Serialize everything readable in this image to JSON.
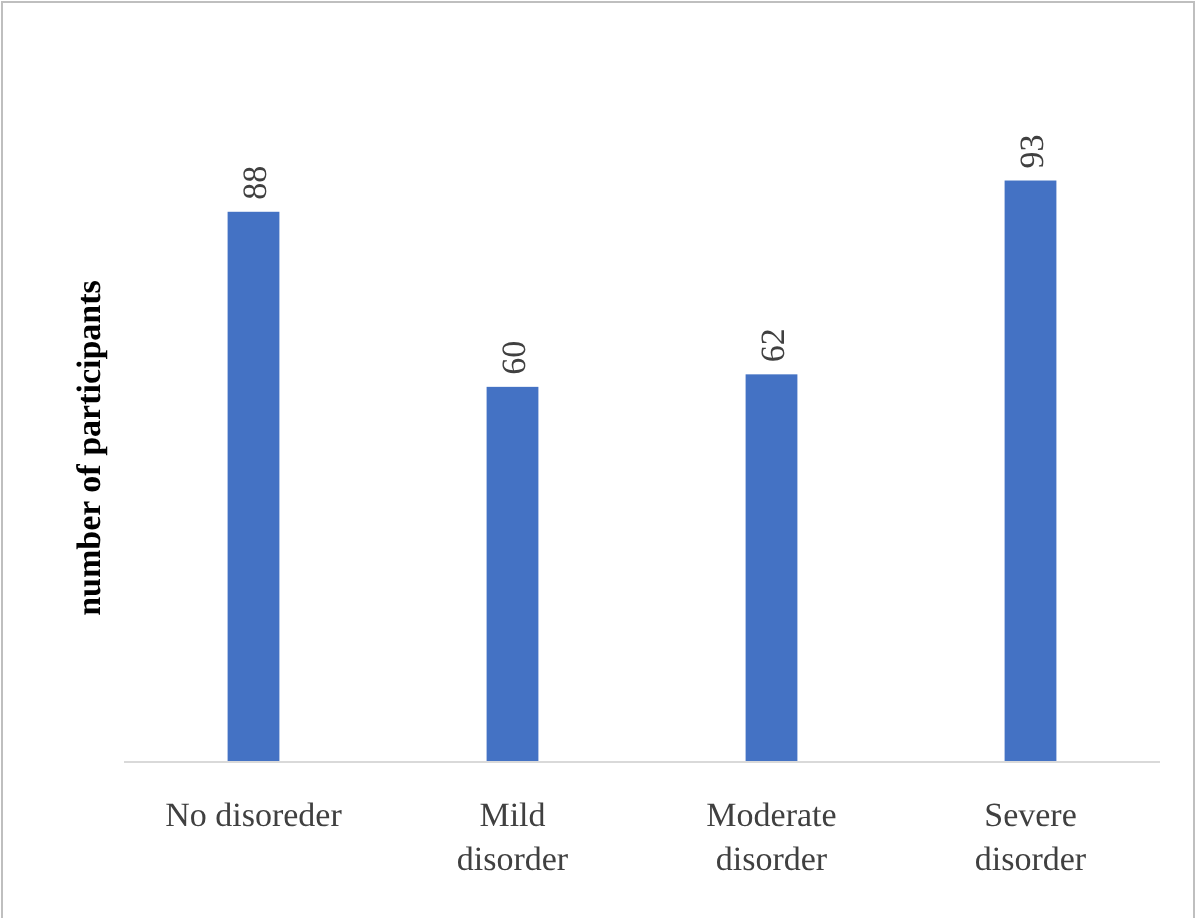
{
  "chart_data": {
    "type": "bar",
    "ylabel": "number of participants",
    "categories": [
      "No disoreder",
      "Mild\ndisorder",
      "Moderate\ndisorder",
      "Severe\ndisorder"
    ],
    "values": [
      88,
      60,
      62,
      93
    ],
    "color": "#4472c4",
    "data_labels": true
  }
}
